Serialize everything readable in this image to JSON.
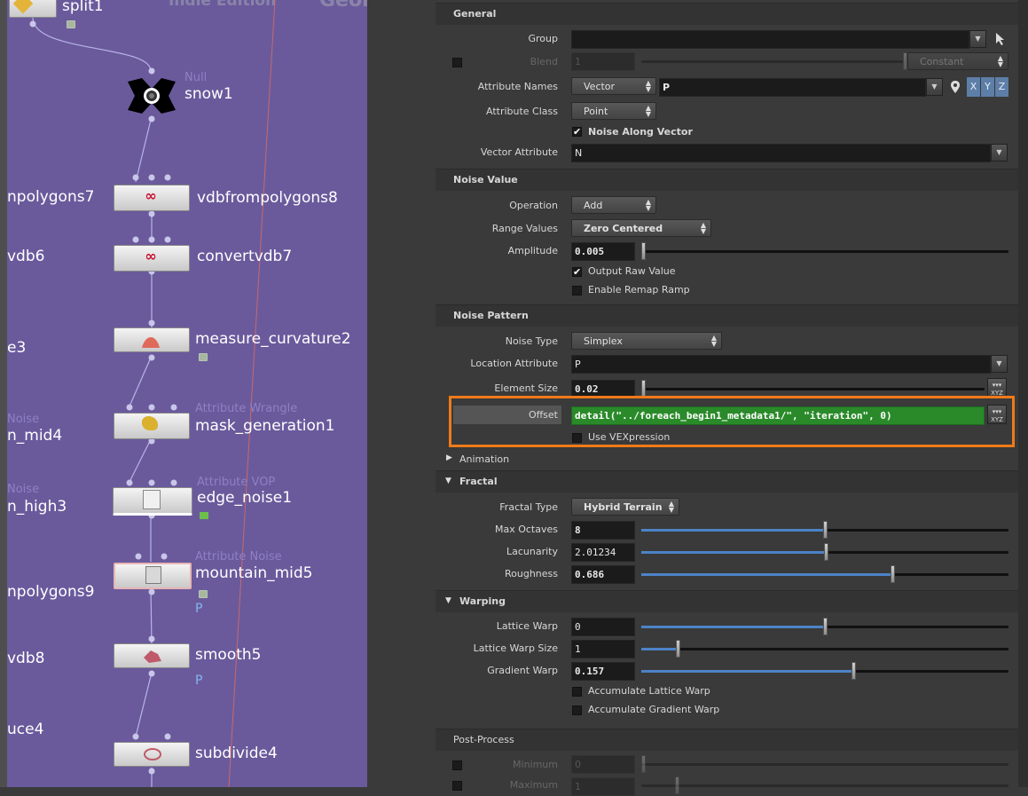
{
  "network": {
    "background_label": "Geometry",
    "edition_label": "Indie Edition",
    "nodes": [
      {
        "name": "split1",
        "type": ""
      },
      {
        "name": "snow1",
        "type": "Null"
      },
      {
        "name": "vdbfrompolygons8",
        "type": ""
      },
      {
        "name": "convertvdb7",
        "type": ""
      },
      {
        "name": "measure_curvature2",
        "type": ""
      },
      {
        "name": "mask_generation1",
        "type": "Attribute Wrangle"
      },
      {
        "name": "edge_noise1",
        "type": "Attribute VOP"
      },
      {
        "name": "mountain_mid5",
        "type": "Attribute Noise"
      },
      {
        "name": "smooth5",
        "type": ""
      },
      {
        "name": "subdivide4",
        "type": ""
      }
    ],
    "cut_labels": [
      "npolygons7",
      "vdb6",
      "e3",
      "n_mid4",
      "n_high3",
      "npolygons9",
      "vdb8",
      "uce4"
    ],
    "cut_types": [
      "Noise",
      "Noise"
    ],
    "flag_p": "P"
  },
  "params": {
    "sections": {
      "general": "General",
      "noise_value": "Noise Value",
      "noise_pattern": "Noise Pattern",
      "animation": "Animation",
      "fractal": "Fractal",
      "warping": "Warping",
      "post_process": "Post-Process"
    },
    "labels": {
      "group": "Group",
      "blend": "Blend",
      "attribute_names": "Attribute Names",
      "attribute_class": "Attribute Class",
      "vector_attribute": "Vector Attribute",
      "operation": "Operation",
      "range_values": "Range Values",
      "amplitude": "Amplitude",
      "noise_type": "Noise Type",
      "location_attribute": "Location Attribute",
      "element_size": "Element Size",
      "offset": "Offset",
      "fractal_type": "Fractal Type",
      "max_octaves": "Max Octaves",
      "lacunarity": "Lacunarity",
      "roughness": "Roughness",
      "lattice_warp": "Lattice Warp",
      "lattice_warp_size": "Lattice Warp Size",
      "gradient_warp": "Gradient Warp",
      "minimum": "Minimum",
      "maximum": "Maximum"
    },
    "values": {
      "group": "",
      "blend": "1",
      "blend_mode": "Constant",
      "attribute_names_type": "Vector",
      "attribute_names": "P",
      "attribute_class": "Point",
      "vector_attribute": "N",
      "operation": "Add",
      "range_values": "Zero Centered",
      "amplitude": "0.005",
      "noise_type": "Simplex",
      "location_attribute": "P",
      "element_size": "0.02",
      "offset": "detail(\"../foreach_begin1_metadata1/\", \"iteration\", 0)",
      "fractal_type": "Hybrid Terrain",
      "max_octaves": "8",
      "lacunarity": "2.01234",
      "roughness": "0.686",
      "lattice_warp": "0",
      "lattice_warp_size": "1",
      "gradient_warp": "0.157",
      "minimum": "0",
      "maximum": "1"
    },
    "checkboxes": {
      "noise_along_vector": "Noise Along Vector",
      "output_raw_value": "Output Raw Value",
      "enable_remap_ramp": "Enable Remap Ramp",
      "use_vexpression": "Use VEXpression",
      "accumulate_lattice_warp": "Accumulate Lattice Warp",
      "accumulate_gradient_warp": "Accumulate Gradient Warp"
    },
    "checkbox_state": {
      "noise_along_vector": true,
      "output_raw_value": true,
      "enable_remap_ramp": false,
      "use_vexpression": false,
      "accumulate_lattice_warp": false,
      "accumulate_gradient_warp": false
    },
    "vector_buttons": [
      "X",
      "Y",
      "Z"
    ],
    "xyz_button": "XYZ",
    "slider_levels": {
      "blend": 1.0,
      "amplitude": 0.0,
      "element_size": 0.0,
      "max_octaves": 0.5,
      "lacunarity": 0.5,
      "roughness": 0.686,
      "lattice_warp": 0.5,
      "lattice_warp_size": 0.1,
      "gradient_warp": 0.57
    }
  },
  "colors": {
    "network_bg": "#6a5a9c",
    "expression_bg": "#2a8a2a",
    "highlight": "#f07a18",
    "slider_fill": "#4c83c7"
  },
  "icons": [
    "pin-icon",
    "arrow-cursor-icon",
    "dropdown-arrow-icon",
    "checkmark-icon",
    "expand-triangle-icon",
    "lock-icon"
  ]
}
